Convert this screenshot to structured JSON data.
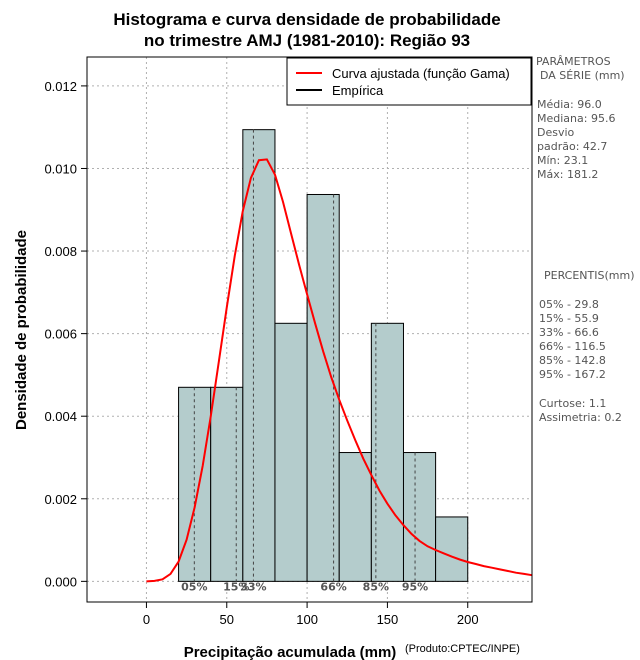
{
  "chart_data": {
    "type": "bar",
    "title_line1": "Histograma e curva densidade de probabilidade",
    "title_line2": "no trimestre AMJ (1981-2010): Região 93",
    "xlabel": "Precipitação acumulada (mm)",
    "ylabel": "Densidade de probabilidade",
    "credit": "(Produto:CPTEC/INPE)",
    "xlim": [
      -37,
      240
    ],
    "ylim": [
      -0.0005,
      0.0127
    ],
    "x_ticks": [
      0,
      50,
      100,
      150,
      200
    ],
    "x_tick_labels": [
      "0",
      "50",
      "100",
      "150",
      "200"
    ],
    "y_ticks": [
      0.0,
      0.002,
      0.004,
      0.006,
      0.008,
      0.01,
      0.012
    ],
    "y_tick_labels": [
      "0.000",
      "0.002",
      "0.004",
      "0.006",
      "0.008",
      "0.010",
      "0.012"
    ],
    "grid": true,
    "histogram": {
      "bins": [
        {
          "from": 20,
          "to": 40,
          "density": 0.0047
        },
        {
          "from": 40,
          "to": 60,
          "density": 0.0047
        },
        {
          "from": 60,
          "to": 80,
          "density": 0.01094
        },
        {
          "from": 80,
          "to": 100,
          "density": 0.00625
        },
        {
          "from": 100,
          "to": 120,
          "density": 0.00937
        },
        {
          "from": 120,
          "to": 140,
          "density": 0.00312
        },
        {
          "from": 140,
          "to": 160,
          "density": 0.00625
        },
        {
          "from": 160,
          "to": 180,
          "density": 0.00312
        },
        {
          "from": 180,
          "to": 200,
          "density": 0.00156
        }
      ],
      "fill": "#b4cccc",
      "stroke": "#000000"
    },
    "fitted_curve": {
      "name": "Curva ajustada (função Gama)",
      "color": "#ff0000",
      "x": [
        0,
        5,
        10,
        15,
        20,
        25,
        30,
        35,
        40,
        45,
        50,
        55,
        60,
        65,
        70,
        75,
        80,
        85,
        90,
        95,
        100,
        105,
        110,
        115,
        120,
        125,
        130,
        135,
        140,
        145,
        150,
        155,
        160,
        165,
        170,
        175,
        180,
        185,
        190,
        195,
        200,
        205,
        210,
        215,
        220,
        225,
        230,
        235,
        240
      ],
      "y": [
        0,
        1e-05,
        5e-05,
        0.00018,
        0.00048,
        0.00101,
        0.00179,
        0.0028,
        0.00399,
        0.0053,
        0.00664,
        0.00789,
        0.00897,
        0.00977,
        0.0102,
        0.01022,
        0.00985,
        0.00919,
        0.00843,
        0.00767,
        0.00695,
        0.00625,
        0.00557,
        0.00495,
        0.0044,
        0.00389,
        0.00342,
        0.00297,
        0.00257,
        0.0022,
        0.00188,
        0.0016,
        0.00136,
        0.00115,
        0.00098,
        0.00085,
        0.00076,
        0.00068,
        0.0006,
        0.00053,
        0.00047,
        0.00042,
        0.00037,
        0.00033,
        0.00029,
        0.00025,
        0.00021,
        0.00018,
        0.00015
      ]
    },
    "legend": {
      "position": "top-right",
      "entries": [
        {
          "label": "Curva ajustada (função Gama)",
          "color": "#ff0000"
        },
        {
          "label": "Empírica",
          "color": "#000000"
        }
      ]
    },
    "percentile_lines": [
      {
        "label": "05%",
        "x": 29.8,
        "y_top": 0.0047
      },
      {
        "label": "15%",
        "x": 55.9,
        "y_top": 0.0047
      },
      {
        "label": "33%",
        "x": 66.6,
        "y_top": 0.01094
      },
      {
        "label": "66%",
        "x": 116.5,
        "y_top": 0.00937
      },
      {
        "label": "85%",
        "x": 142.8,
        "y_top": 0.00625
      },
      {
        "label": "95%",
        "x": 167.2,
        "y_top": 0.00312
      }
    ]
  },
  "side_panel": {
    "params_title_1": "PARÂMETROS",
    "params_title_2": "DA SÉRIE (mm)",
    "stats": [
      "Média:  96.0",
      "Mediana:  95.6",
      "Desvio",
      "padrão:  42.7",
      "Mín:  23.1",
      "Máx:  181.2"
    ],
    "percentis_title": "PERCENTIS(mm)",
    "percentis": [
      "05% -  29.8",
      "15% -  55.9",
      "33% -  66.6",
      "66% -  116.5",
      "85% -  142.8",
      "95% -  167.2"
    ],
    "extra": [
      "Curtose:  1.1",
      "Assimetria:  0.2"
    ]
  }
}
